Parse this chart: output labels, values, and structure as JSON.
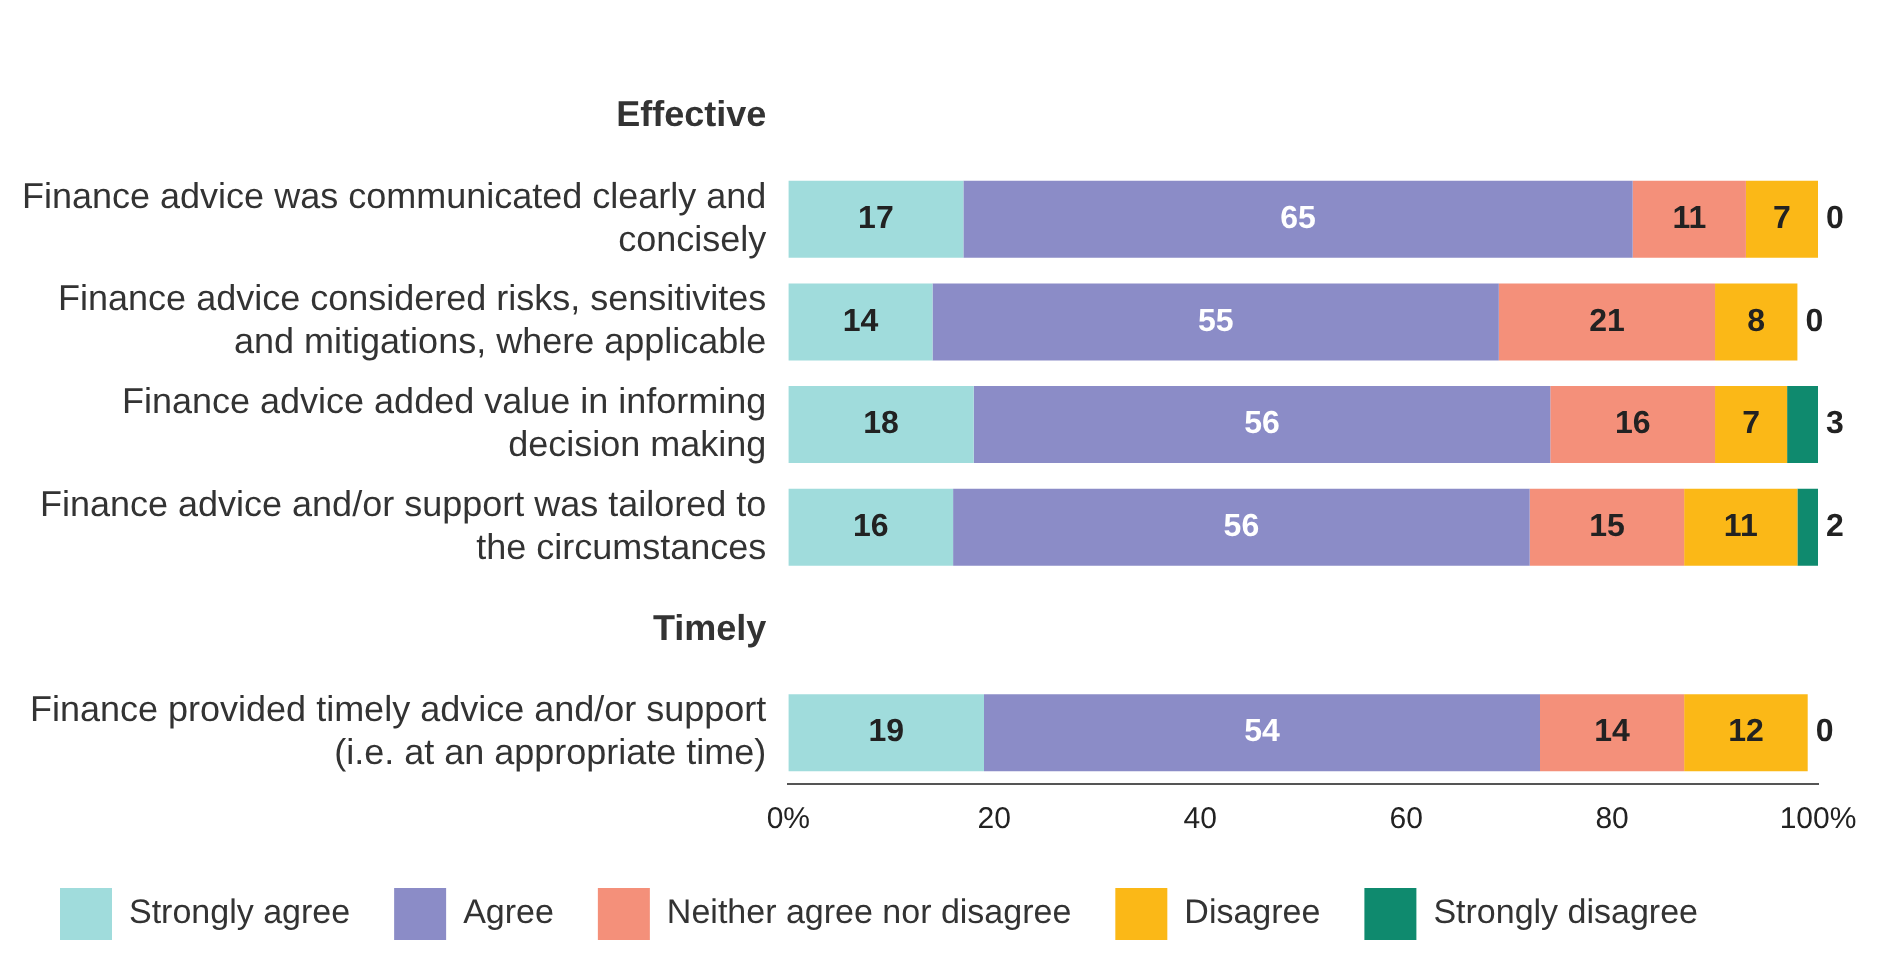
{
  "chart_data": {
    "type": "bar",
    "orientation": "horizontal",
    "stacked": true,
    "categories": [
      "Effective",
      "Finance advice was communicated clearly and concisely",
      "Finance advice considered risks, sensitivites and mitigations, where applicable",
      "Finance advice added value in informing decision making",
      "Finance advice and/or support was tailored to the circumstances",
      "Timely",
      "Finance provided timely advice and/or support (i.e. at an appropriate time)"
    ],
    "series": [
      {
        "name": "Strongly agree",
        "color": "#a0dcdc",
        "values": [
          null,
          17,
          14,
          18,
          16,
          null,
          19
        ]
      },
      {
        "name": "Agree",
        "color": "#8b8cc7",
        "values": [
          null,
          65,
          55,
          56,
          56,
          null,
          54
        ]
      },
      {
        "name": "Neither agree nor disagree",
        "color": "#f4907a",
        "values": [
          null,
          11,
          21,
          16,
          15,
          null,
          14
        ]
      },
      {
        "name": "Disagree",
        "color": "#fbb817",
        "values": [
          null,
          7,
          8,
          7,
          11,
          null,
          12
        ]
      },
      {
        "name": "Strongly disagree",
        "color": "#0f8a6e",
        "values": [
          null,
          0,
          0,
          3,
          2,
          null,
          0
        ]
      }
    ],
    "xlim": [
      0,
      100
    ],
    "xticks": [
      {
        "value": 0,
        "label": "0%"
      },
      20,
      40,
      60,
      80,
      {
        "value": 100,
        "label": "100%"
      }
    ],
    "data_labels": true,
    "grid": false,
    "legend": "bottom"
  }
}
